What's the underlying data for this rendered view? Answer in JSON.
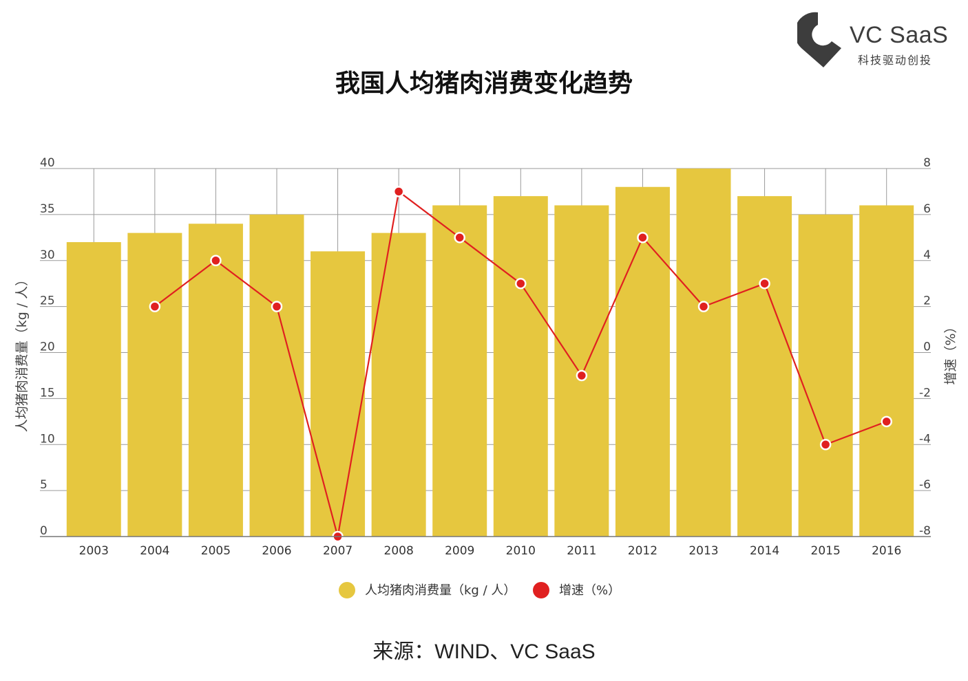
{
  "logo": {
    "name": "VC SaaS",
    "tagline": "科技驱动创投",
    "mark_color": "#3d3d3d"
  },
  "source_text": "来源：WIND、VC SaaS",
  "chart_data": {
    "type": "bar",
    "title": "我国人均猪肉消费变化趋势",
    "categories": [
      "2003",
      "2004",
      "2005",
      "2006",
      "2007",
      "2008",
      "2009",
      "2010",
      "2011",
      "2012",
      "2013",
      "2014",
      "2015",
      "2016"
    ],
    "series": [
      {
        "name": "人均猪肉消费量（kg / 人）",
        "type": "bar",
        "axis": "left",
        "color": "#e6c73f",
        "values": [
          32,
          33,
          34,
          35,
          31,
          33,
          36,
          37,
          36,
          38,
          40,
          37,
          35,
          36
        ]
      },
      {
        "name": "增速（%）",
        "type": "line",
        "axis": "right",
        "color": "#e02020",
        "values": [
          null,
          2,
          4,
          2,
          -8,
          7,
          5,
          3,
          -1,
          5,
          2,
          3,
          -4,
          -3
        ]
      }
    ],
    "ylabel": "人均猪肉消费量（kg / 人）",
    "ylabel_right": "增速（%）",
    "ylim": [
      0,
      40
    ],
    "yticks": [
      "0",
      "5",
      "10",
      "15",
      "20",
      "25",
      "30",
      "35",
      "40"
    ],
    "ylim_right": [
      -8,
      8
    ],
    "yticks_right": [
      "-8",
      "-6",
      "-4",
      "-2",
      "0",
      "2",
      "4",
      "6",
      "8"
    ],
    "grid": true,
    "legend_position": "bottom-center"
  }
}
